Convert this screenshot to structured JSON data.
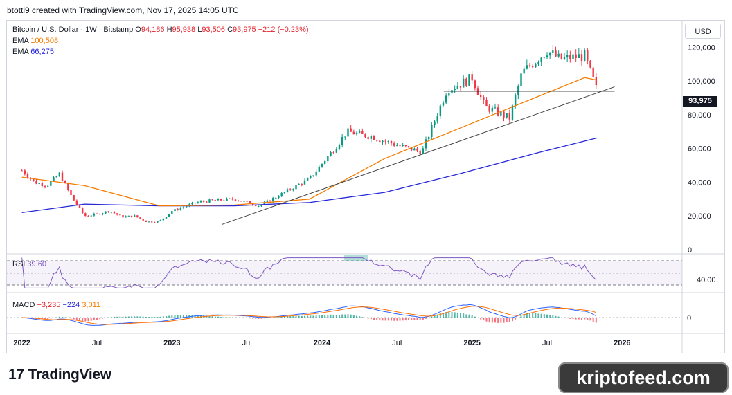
{
  "header": {
    "title": "btotti9 created with TradingView.com, Nov 17, 2025 14:05 UTC"
  },
  "legend": {
    "symbol": "Bitcoin / U.S. Dollar · 1W · Bitstamp",
    "open_label": "O",
    "open": "94,186",
    "high_label": "H",
    "high": "95,938",
    "low_label": "L",
    "low": "93,506",
    "close_label": "C",
    "close": "93,975",
    "change": "−212 (−0.23%)",
    "ema_label": "EMA",
    "ema_fast": "100,508",
    "ema_slow": "66,275"
  },
  "rsi": {
    "label": "RSI",
    "value": "39.60"
  },
  "macd": {
    "label": "MACD",
    "hist": "−3,235",
    "macd": "−224",
    "signal": "3,011"
  },
  "currency": "USD",
  "price_tag": "93,975",
  "logo": {
    "mark": "17",
    "text": "TradingView"
  },
  "brand": "kriptofeed.com",
  "colors": {
    "up": "#089981",
    "down": "#f23645",
    "ema_fast": "#f57c00",
    "ema_slow": "#2628d6",
    "rsi": "#7e57c2",
    "macd": "#2962ff",
    "signal": "#ff6d00"
  },
  "chart_data": {
    "type": "candlestick",
    "price_axis": {
      "ticks": [
        "0",
        "20,000",
        "40,000",
        "60,000",
        "80,000",
        "100,000",
        "120,000"
      ],
      "range": [
        0,
        130000
      ]
    },
    "rsi_axis": {
      "ticks": [
        "40.00"
      ],
      "bands": [
        30,
        70
      ]
    },
    "macd_axis": {
      "ticks": [
        "0"
      ]
    },
    "time_axis": [
      "2022",
      "Jul",
      "2023",
      "Jul",
      "2024",
      "Jul",
      "2025",
      "Jul",
      "2026"
    ],
    "close_series": [
      {
        "t": "2022-01",
        "v": 47000
      },
      {
        "t": "2022-02",
        "v": 40000
      },
      {
        "t": "2022-03",
        "v": 38000
      },
      {
        "t": "2022-04",
        "v": 45000
      },
      {
        "t": "2022-05",
        "v": 31000
      },
      {
        "t": "2022-06",
        "v": 20000
      },
      {
        "t": "2022-07",
        "v": 21000
      },
      {
        "t": "2022-08",
        "v": 23000
      },
      {
        "t": "2022-09",
        "v": 19500
      },
      {
        "t": "2022-10",
        "v": 20000
      },
      {
        "t": "2022-11",
        "v": 16500
      },
      {
        "t": "2022-12",
        "v": 16800
      },
      {
        "t": "2023-01",
        "v": 23000
      },
      {
        "t": "2023-03",
        "v": 28000
      },
      {
        "t": "2023-04",
        "v": 29000
      },
      {
        "t": "2023-06",
        "v": 30000
      },
      {
        "t": "2023-08",
        "v": 26000
      },
      {
        "t": "2023-10",
        "v": 34000
      },
      {
        "t": "2023-12",
        "v": 42000
      },
      {
        "t": "2024-02",
        "v": 60000
      },
      {
        "t": "2024-03",
        "v": 70000
      },
      {
        "t": "2024-05",
        "v": 67000
      },
      {
        "t": "2024-07",
        "v": 62000
      },
      {
        "t": "2024-09",
        "v": 58000
      },
      {
        "t": "2024-11",
        "v": 95000
      },
      {
        "t": "2024-12",
        "v": 98000
      },
      {
        "t": "2025-01",
        "v": 102000
      },
      {
        "t": "2025-02",
        "v": 85000
      },
      {
        "t": "2025-04",
        "v": 78000
      },
      {
        "t": "2025-05",
        "v": 105000
      },
      {
        "t": "2025-07",
        "v": 118000
      },
      {
        "t": "2025-08",
        "v": 113000
      },
      {
        "t": "2025-10",
        "v": 115000
      },
      {
        "t": "2025-11",
        "v": 94000
      }
    ],
    "ema_fast": [
      {
        "t": "2022-01",
        "v": 43000
      },
      {
        "t": "2022-06",
        "v": 38000
      },
      {
        "t": "2022-12",
        "v": 26000
      },
      {
        "t": "2023-06",
        "v": 26500
      },
      {
        "t": "2023-12",
        "v": 30000
      },
      {
        "t": "2024-06",
        "v": 54000
      },
      {
        "t": "2024-12",
        "v": 72000
      },
      {
        "t": "2025-06",
        "v": 90000
      },
      {
        "t": "2025-10",
        "v": 102000
      },
      {
        "t": "2025-11",
        "v": 100508
      }
    ],
    "ema_slow": [
      {
        "t": "2022-01",
        "v": 22000
      },
      {
        "t": "2022-06",
        "v": 27000
      },
      {
        "t": "2022-12",
        "v": 26000
      },
      {
        "t": "2023-06",
        "v": 26000
      },
      {
        "t": "2023-12",
        "v": 28000
      },
      {
        "t": "2024-06",
        "v": 34000
      },
      {
        "t": "2024-12",
        "v": 45000
      },
      {
        "t": "2025-06",
        "v": 57000
      },
      {
        "t": "2025-11",
        "v": 66275
      }
    ],
    "trendline": [
      {
        "t": "2023-05",
        "v": 15000
      },
      {
        "t": "2025-11",
        "v": 93000
      }
    ],
    "support_level": 93975
  }
}
